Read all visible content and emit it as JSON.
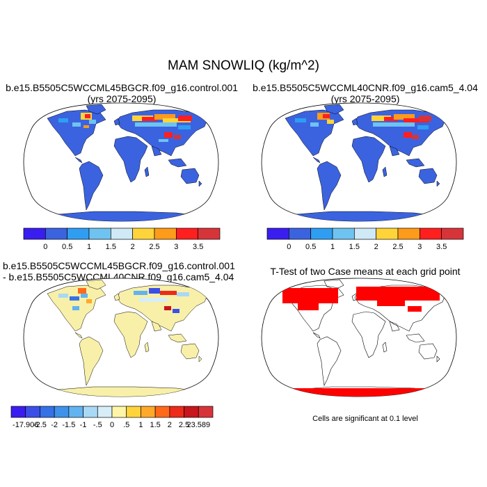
{
  "main_title": "MAM SNOWLIQ (kg/m^2)",
  "panels": [
    {
      "title_line1": "b.e15.B5505C5WCCML45BGCR.f09_g16.control.001",
      "title_line2": "(yrs 2075-2095)"
    },
    {
      "title_line1": "b.e15.B5505C5WCCML40CNR.f09_g16.cam5_4.04",
      "title_line2": "(yrs 2075-2095)"
    },
    {
      "title_line1": "b.e15.B5505C5WCCML45BGCR.f09_g16.control.001",
      "title_line2": "- b.e15.B5505C5WCCML40CNR.f09_g16.cam5_4.04"
    },
    {
      "title_line1": "T-Test of two Case means at each grid point",
      "title_line2": ""
    }
  ],
  "colorbar_abs": {
    "labels": [
      "0",
      "0.5",
      "1",
      "1.5",
      "2",
      "2.5",
      "3",
      "3.5"
    ],
    "colors": [
      "#3a1ef0",
      "#3b63e0",
      "#2f9ef2",
      "#6ec3f0",
      "#cfe9f6",
      "#ffd43a",
      "#ff9b1a",
      "#ff1f1f",
      "#d7343a"
    ]
  },
  "colorbar_diff": {
    "labels": [
      "-17.906",
      "-2.5",
      "-2",
      "-1.5",
      "-1",
      "-.5",
      "0",
      ".5",
      "1",
      "1.5",
      "2",
      "2.5",
      "23.589"
    ],
    "colors": [
      "#3a1ef0",
      "#3b4fe8",
      "#3572e6",
      "#3f92ea",
      "#62b3f0",
      "#a9d9f4",
      "#d7eef8",
      "#fff5a8",
      "#ffd43a",
      "#ffa92a",
      "#ff6a1a",
      "#ee2a1a",
      "#c7161c",
      "#d7343a"
    ]
  },
  "colors": {
    "ocean": "#ffffff",
    "land_abs": "#3b63e0",
    "land_diff": "#f8f0a8",
    "ttest_sig": "#ff0000"
  },
  "footnote": "Cells are significant at 0.1 level"
}
